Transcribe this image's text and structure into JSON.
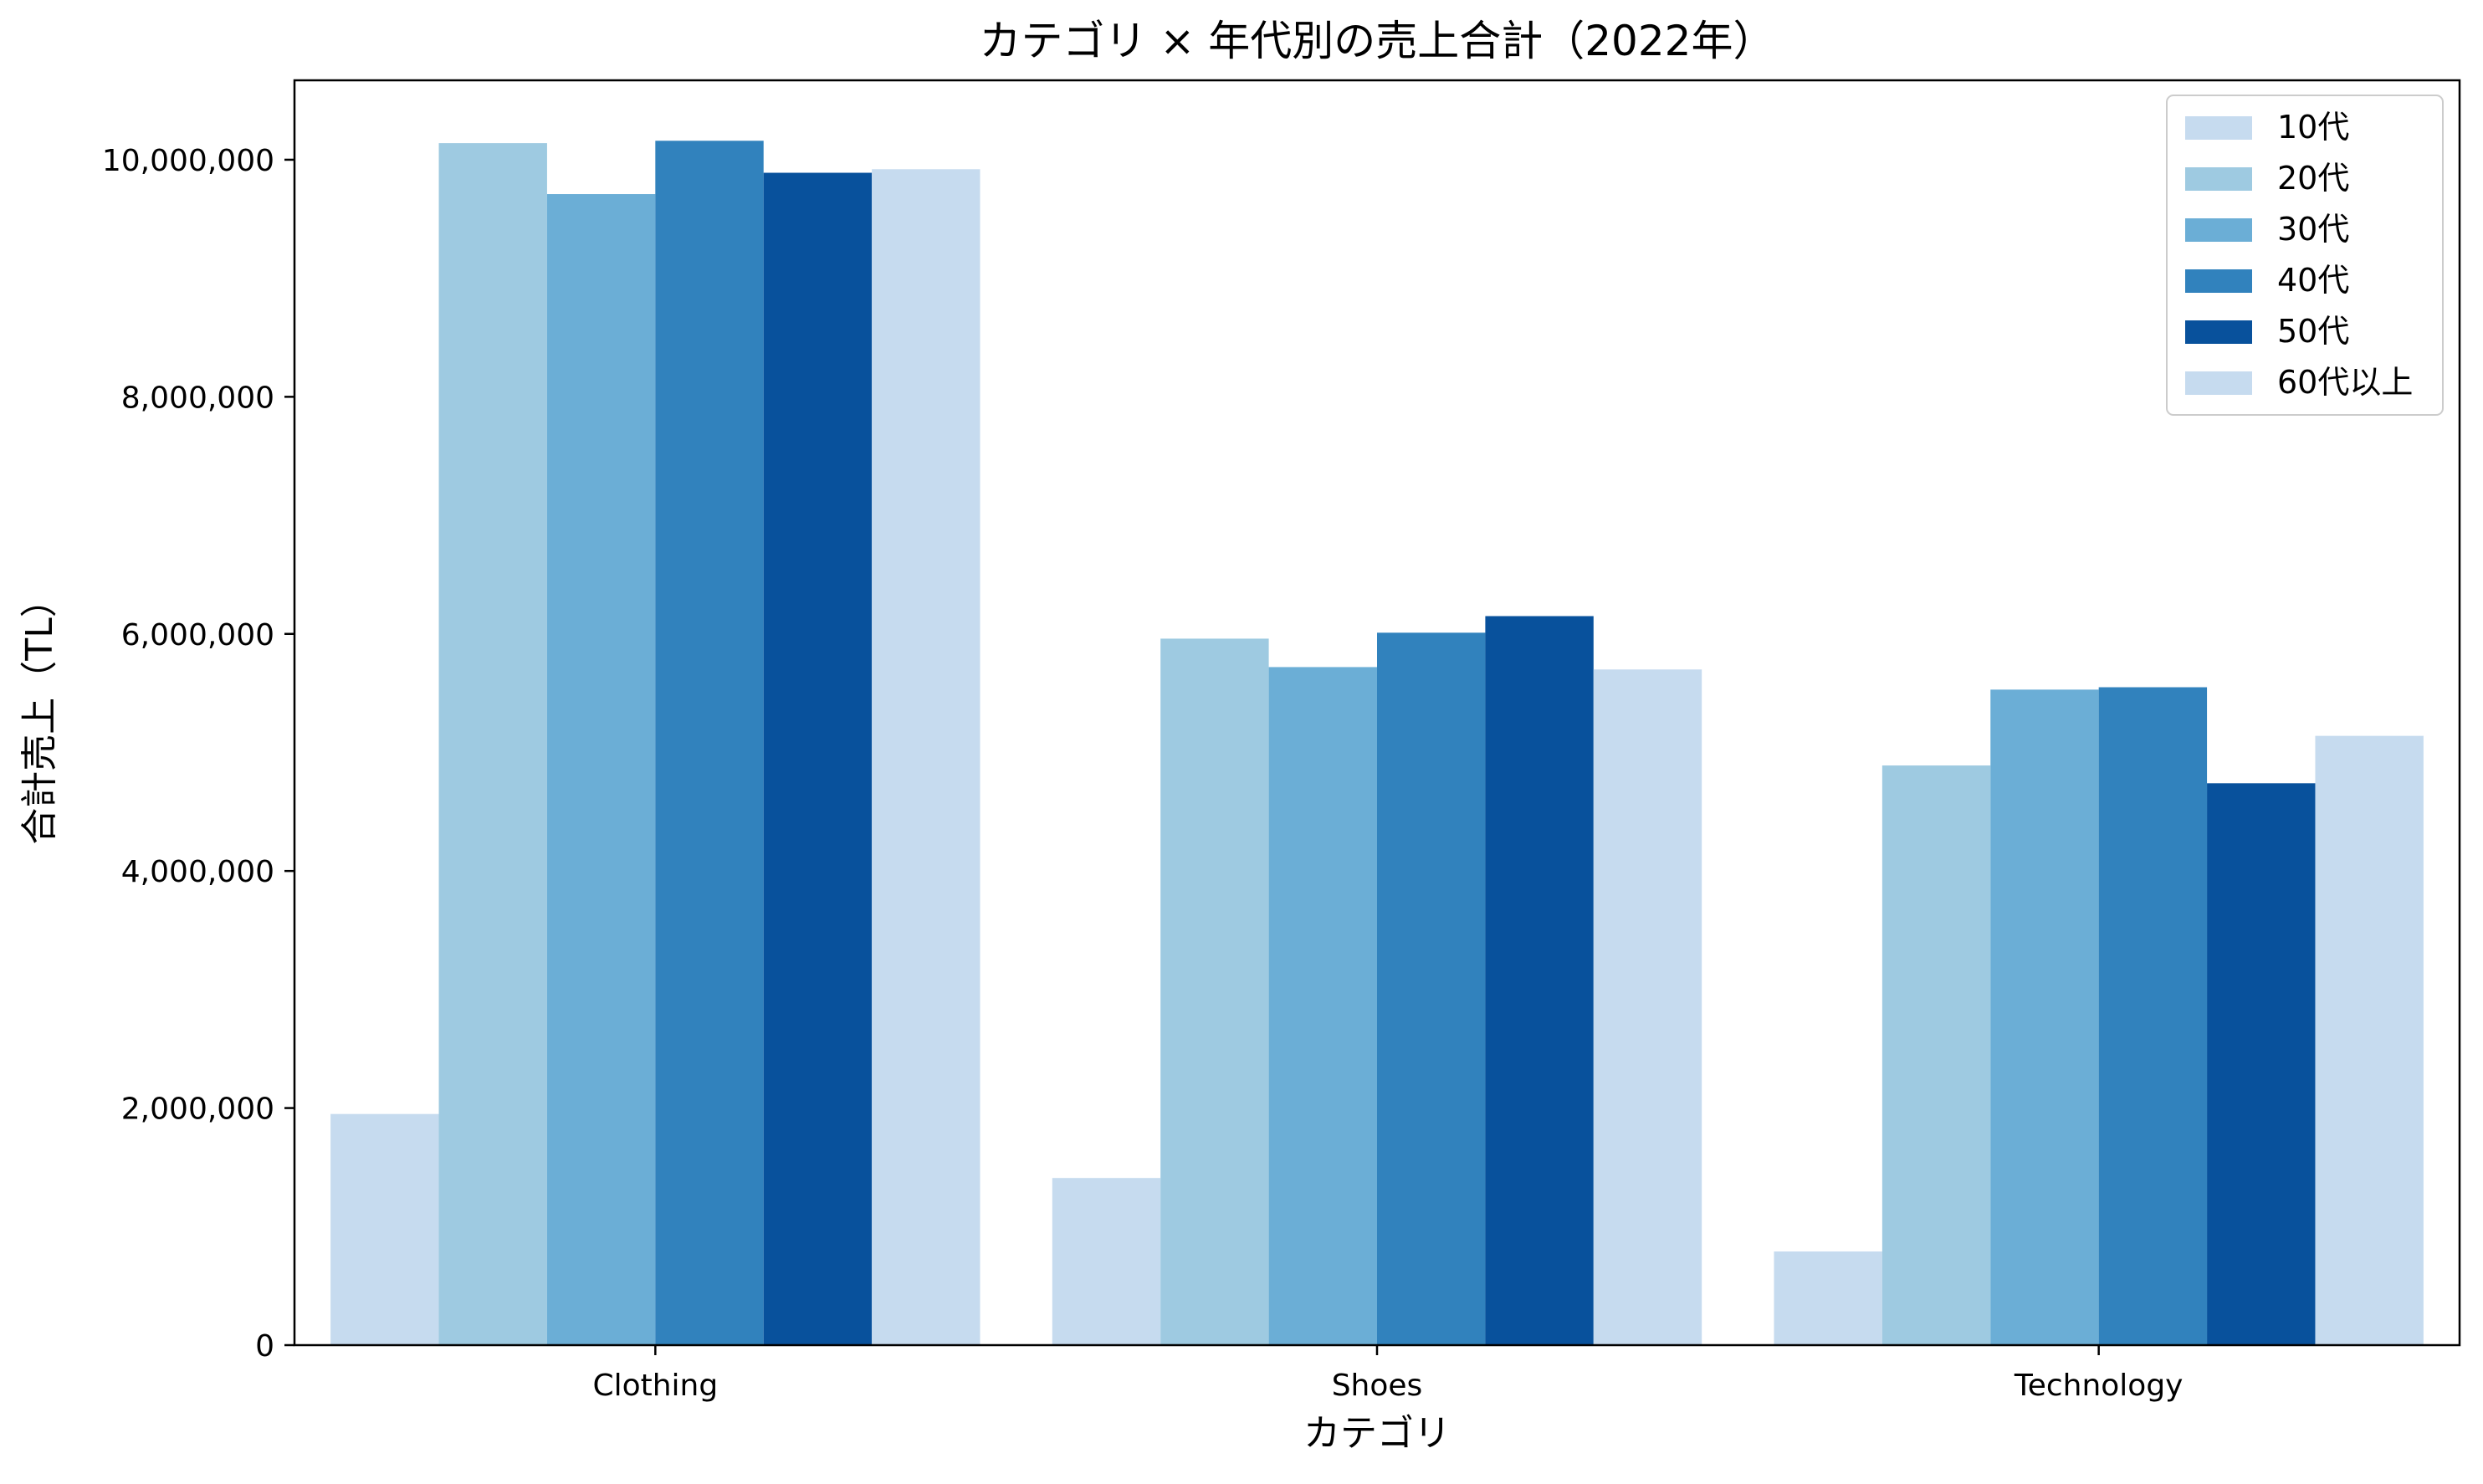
{
  "chart_data": {
    "type": "bar",
    "title": "カテゴリ × 年代別の売上合計（2022年）",
    "xlabel": "カテゴリ",
    "ylabel": "合計売上（TL）",
    "categories": [
      "Clothing",
      "Shoes",
      "Technology"
    ],
    "series": [
      {
        "name": "10代",
        "color": "#c6dbef",
        "values": [
          1950000,
          1410000,
          790000
        ]
      },
      {
        "name": "20代",
        "color": "#9ecae1",
        "values": [
          10140000,
          5960000,
          4890000
        ]
      },
      {
        "name": "30代",
        "color": "#6baed6",
        "values": [
          9710000,
          5720000,
          5530000
        ]
      },
      {
        "name": "40代",
        "color": "#3182bd",
        "values": [
          10160000,
          6010000,
          5550000
        ]
      },
      {
        "name": "50代",
        "color": "#08519c",
        "values": [
          9890000,
          6150000,
          4740000
        ]
      },
      {
        "name": "60代以上",
        "color": "#c6dbef",
        "values": [
          9920000,
          5700000,
          5140000
        ]
      }
    ],
    "ylim": [
      0,
      10670000
    ],
    "yticks": [
      0,
      2000000,
      4000000,
      6000000,
      8000000,
      10000000
    ],
    "ytick_labels": [
      "0",
      "2,000,000",
      "4,000,000",
      "6,000,000",
      "8,000,000",
      "10,000,000"
    ],
    "grid": false,
    "legend_position": "top-right"
  }
}
